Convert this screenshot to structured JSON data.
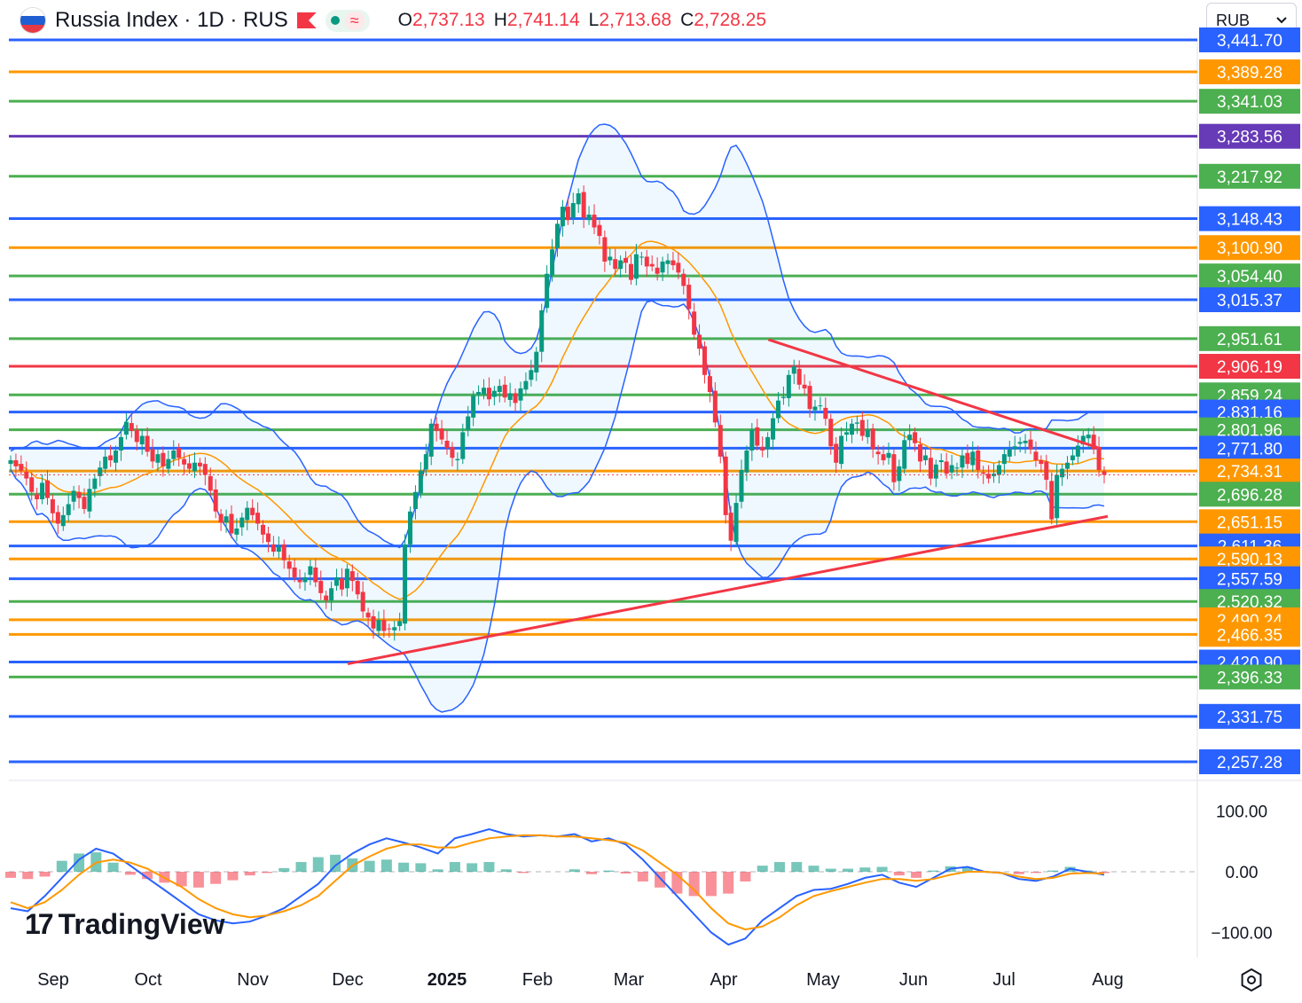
{
  "header": {
    "title": "Russia Index · 1D · RUS",
    "o_label": "O",
    "o_value": "2,737.13",
    "h_label": "H",
    "h_value": "2,741.14",
    "l_label": "L",
    "l_value": "2,713.68",
    "c_label": "C",
    "c_value": "2,728.25",
    "indicator_glyph": "≈"
  },
  "currency_select": {
    "value": "RUB",
    "icon": "chevron-down-icon"
  },
  "logo": {
    "mark": "17",
    "text": "TradingView"
  },
  "colors": {
    "up": "#089981",
    "down": "#f23645",
    "blue": "#2962ff",
    "orange": "#ff9800",
    "green": "#4caf50",
    "purple": "#673ab7",
    "red": "#f23645"
  },
  "chart_data": [
    {
      "type": "candlestick",
      "title": "Russia Index · 1D · RUS",
      "x_ticks": [
        "Sep",
        "Oct",
        "Nov",
        "Dec",
        "2025",
        "Feb",
        "Mar",
        "Apr",
        "May",
        "Jun",
        "Jul",
        "Aug"
      ],
      "ylim": [
        2230,
        3430
      ],
      "last_price": 2728.25,
      "horizontal_levels": [
        {
          "value": 3441.7,
          "color": "#2962ff",
          "label": "3,441.70"
        },
        {
          "value": 3389.28,
          "color": "#ff9800",
          "label": "3,389.28"
        },
        {
          "value": 3341.03,
          "color": "#4caf50",
          "label": "3,341.03"
        },
        {
          "value": 3283.56,
          "color": "#673ab7",
          "label": "3,283.56"
        },
        {
          "value": 3217.92,
          "color": "#4caf50",
          "label": "3,217.92"
        },
        {
          "value": 3148.43,
          "color": "#2962ff",
          "label": "3,148.43"
        },
        {
          "value": 3100.9,
          "color": "#ff9800",
          "label": "3,100.90"
        },
        {
          "value": 3054.4,
          "color": "#4caf50",
          "label": "3,054.40"
        },
        {
          "value": 3015.37,
          "color": "#2962ff",
          "label": "3,015.37"
        },
        {
          "value": 2951.61,
          "color": "#4caf50",
          "label": "2,951.61"
        },
        {
          "value": 2906.19,
          "color": "#f23645",
          "label": "2,906.19"
        },
        {
          "value": 2859.24,
          "color": "#4caf50",
          "label": "2,859.24"
        },
        {
          "value": 2831.16,
          "color": "#2962ff",
          "label": "2,831.16"
        },
        {
          "value": 2801.96,
          "color": "#4caf50",
          "label": "2,801.96"
        },
        {
          "value": 2771.8,
          "color": "#2962ff",
          "label": "2,771.80"
        },
        {
          "value": 2734.31,
          "color": "#ff9800",
          "label": "2,734.31"
        },
        {
          "value": 2696.28,
          "color": "#4caf50",
          "label": "2,696.28"
        },
        {
          "value": 2651.15,
          "color": "#ff9800",
          "label": "2,651.15"
        },
        {
          "value": 2611.36,
          "color": "#2962ff",
          "label": "2,611.36"
        },
        {
          "value": 2590.13,
          "color": "#ff9800",
          "label": "2,590.13"
        },
        {
          "value": 2557.59,
          "color": "#2962ff",
          "label": "2,557.59"
        },
        {
          "value": 2520.32,
          "color": "#4caf50",
          "label": "2,520.32"
        },
        {
          "value": 2490.24,
          "color": "#ff9800",
          "label": "2,490.24"
        },
        {
          "value": 2466.35,
          "color": "#ff9800",
          "label": "2,466.35"
        },
        {
          "value": 2420.9,
          "color": "#2962ff",
          "label": "2,420.90"
        },
        {
          "value": 2396.33,
          "color": "#4caf50",
          "label": "2,396.33"
        },
        {
          "value": 2331.75,
          "color": "#2962ff",
          "label": "2,331.75"
        },
        {
          "value": 2257.28,
          "color": "#2962ff",
          "label": "2,257.28"
        }
      ],
      "close_series": [
        2752,
        2742,
        2735,
        2722,
        2700,
        2688,
        2715,
        2690,
        2665,
        2648,
        2662,
        2680,
        2702,
        2690,
        2672,
        2705,
        2722,
        2740,
        2758,
        2752,
        2768,
        2790,
        2815,
        2800,
        2782,
        2792,
        2766,
        2750,
        2762,
        2742,
        2754,
        2768,
        2756,
        2745,
        2738,
        2748,
        2742,
        2728,
        2702,
        2668,
        2650,
        2660,
        2632,
        2640,
        2658,
        2674,
        2662,
        2648,
        2630,
        2618,
        2602,
        2610,
        2588,
        2574,
        2560,
        2552,
        2560,
        2578,
        2552,
        2534,
        2522,
        2542,
        2560,
        2540,
        2574,
        2554,
        2532,
        2504,
        2494,
        2476,
        2490,
        2472,
        2475,
        2478,
        2488,
        2614,
        2668,
        2700,
        2735,
        2762,
        2812,
        2800,
        2786,
        2772,
        2756,
        2754,
        2798,
        2824,
        2858,
        2864,
        2871,
        2852,
        2866,
        2874,
        2855,
        2862,
        2846,
        2870,
        2882,
        2900,
        2930,
        2998,
        3058,
        3098,
        3140,
        3168,
        3146,
        3174,
        3190,
        3150,
        3155,
        3134,
        3120,
        3078,
        3086,
        3066,
        3080,
        3076,
        3048,
        3090,
        3086,
        3070,
        3070,
        3058,
        3078,
        3080,
        3072,
        3060,
        3038,
        3000,
        2958,
        2935,
        2892,
        2864,
        2814,
        2758,
        2662,
        2620,
        2682,
        2736,
        2768,
        2802,
        2776,
        2768,
        2790,
        2821,
        2850,
        2856,
        2892,
        2906,
        2876,
        2870,
        2836,
        2840,
        2842,
        2820,
        2775,
        2748,
        2792,
        2798,
        2812,
        2814,
        2792,
        2802,
        2770,
        2762,
        2752,
        2764,
        2716,
        2742,
        2785,
        2794,
        2780,
        2750,
        2760,
        2722,
        2745,
        2752,
        2730,
        2744,
        2740,
        2760,
        2746,
        2766,
        2736,
        2730,
        2722,
        2730,
        2744,
        2762,
        2770,
        2775,
        2782,
        2784,
        2770,
        2752,
        2746,
        2720,
        2655,
        2728,
        2738,
        2748,
        2760,
        2776,
        2792,
        2794,
        2770,
        2736,
        2728
      ],
      "overlays": [
        "Bollinger Bands",
        "moving average"
      ],
      "trendlines": [
        {
          "name": "resistance",
          "from": [
            "Apr",
            2950
          ],
          "to": [
            "Jul",
            2773
          ]
        },
        {
          "name": "support",
          "from": [
            "Dec",
            2418
          ],
          "to": [
            "Aug",
            2660
          ]
        }
      ]
    },
    {
      "type": "line",
      "title": "",
      "y_ticks": [
        "100.00",
        "0.00",
        "−100.00"
      ],
      "ylim": [
        -140,
        150
      ],
      "series": [
        {
          "name": "",
          "color": "#2962ff",
          "values": [
            -60,
            -65,
            -40,
            -10,
            20,
            38,
            30,
            10,
            -10,
            -30,
            -50,
            -70,
            -80,
            -85,
            -82,
            -72,
            -60,
            -40,
            -20,
            10,
            30,
            45,
            55,
            48,
            40,
            30,
            55,
            62,
            70,
            62,
            58,
            60,
            58,
            62,
            50,
            55,
            45,
            20,
            -10,
            -40,
            -70,
            -100,
            -120,
            -110,
            -80,
            -60,
            -40,
            -30,
            -28,
            -20,
            -10,
            -5,
            -18,
            -25,
            -10,
            5,
            8,
            0,
            -2,
            -12,
            -15,
            -8,
            5,
            0,
            -5
          ]
        },
        {
          "name": "",
          "color": "#ff9800",
          "values": [
            -50,
            -60,
            -50,
            -30,
            -5,
            15,
            20,
            15,
            5,
            -10,
            -25,
            -45,
            -60,
            -70,
            -75,
            -72,
            -65,
            -55,
            -40,
            -15,
            10,
            25,
            38,
            45,
            45,
            40,
            40,
            48,
            55,
            58,
            60,
            60,
            58,
            58,
            55,
            52,
            48,
            35,
            15,
            -5,
            -30,
            -60,
            -85,
            -95,
            -90,
            -75,
            -55,
            -40,
            -32,
            -25,
            -18,
            -12,
            -12,
            -15,
            -12,
            -5,
            0,
            0,
            -2,
            -8,
            -12,
            -10,
            -3,
            -2,
            -3
          ]
        }
      ],
      "histogram": [
        -10,
        -12,
        -8,
        18,
        30,
        32,
        15,
        -5,
        -12,
        -18,
        -24,
        -26,
        -20,
        -14,
        -6,
        -2,
        6,
        16,
        24,
        28,
        22,
        18,
        20,
        15,
        14,
        4,
        16,
        14,
        16,
        4,
        -2,
        0,
        0,
        4,
        -4,
        2,
        -3,
        -16,
        -26,
        -36,
        -40,
        -40,
        -36,
        -16,
        10,
        16,
        16,
        10,
        5,
        5,
        7,
        8,
        -6,
        -10,
        2,
        9,
        8,
        0,
        0,
        -4,
        -2,
        2,
        8,
        2,
        -2
      ]
    }
  ]
}
